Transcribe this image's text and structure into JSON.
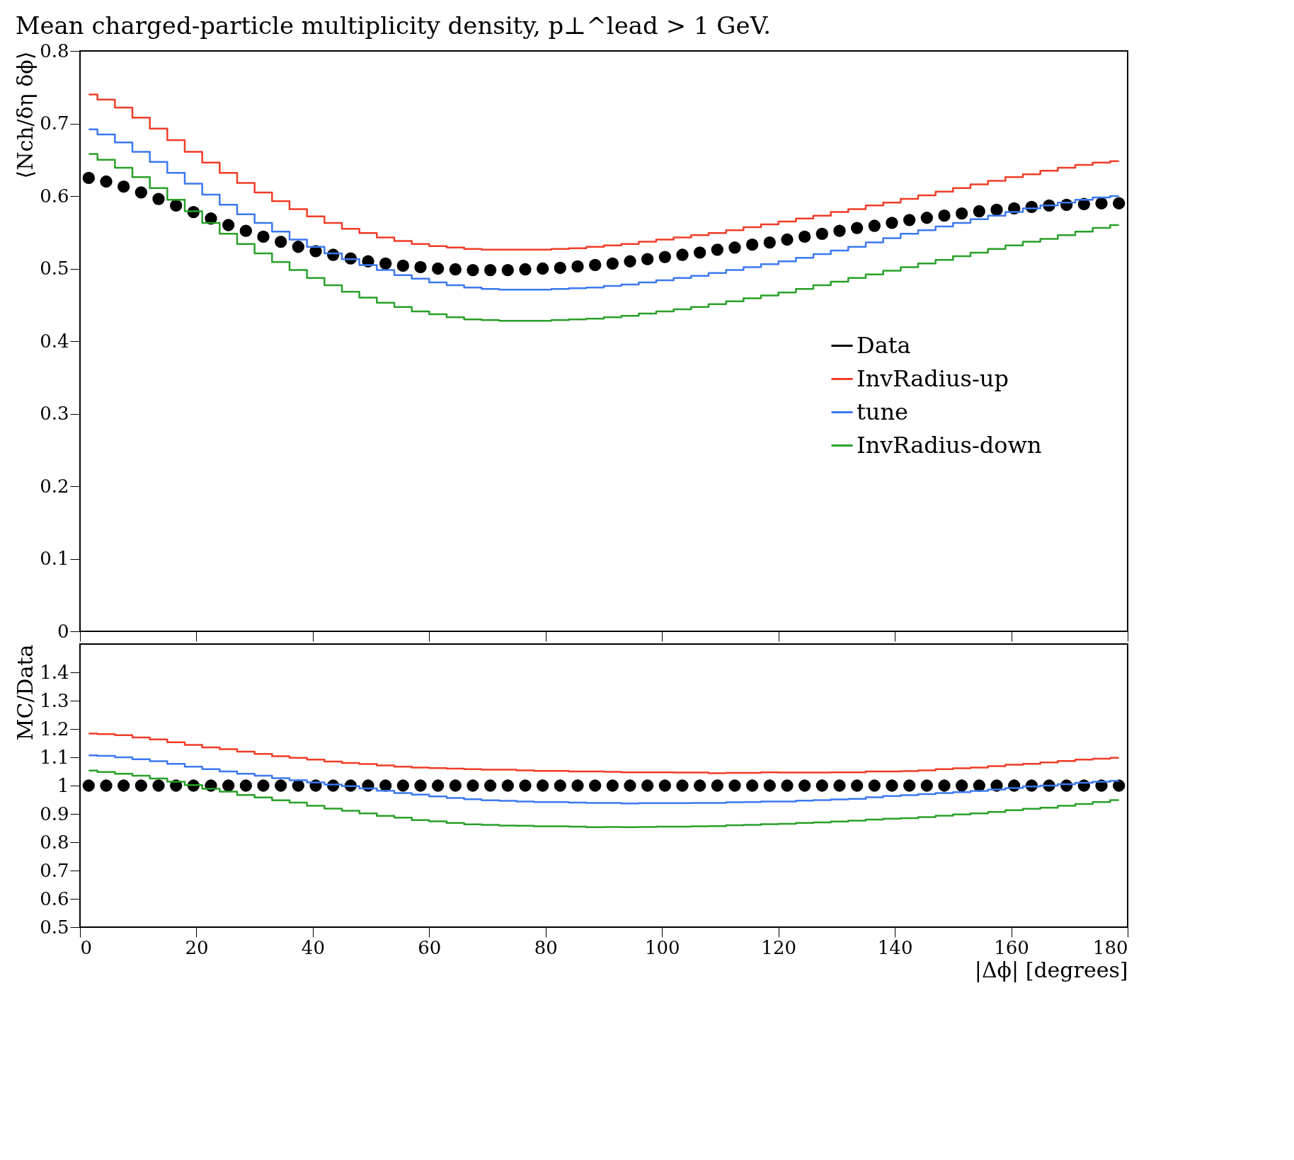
{
  "chart_data": [
    {
      "type": "step",
      "title": "Mean charged-particle multiplicity density, p⊥^lead > 1 GeV.",
      "ylabel": "⟨Nch/δη δϕ⟩",
      "x": [
        1.5,
        4.5,
        7.5,
        10.5,
        13.5,
        16.5,
        19.5,
        22.5,
        25.5,
        28.5,
        31.5,
        34.5,
        37.5,
        40.5,
        43.5,
        46.5,
        49.5,
        52.5,
        55.5,
        58.5,
        61.5,
        64.5,
        67.5,
        70.5,
        73.5,
        76.5,
        79.5,
        82.5,
        85.5,
        88.5,
        91.5,
        94.5,
        97.5,
        100.5,
        103.5,
        106.5,
        109.5,
        112.5,
        115.5,
        118.5,
        121.5,
        124.5,
        127.5,
        130.5,
        133.5,
        136.5,
        139.5,
        142.5,
        145.5,
        148.5,
        151.5,
        154.5,
        157.5,
        160.5,
        163.5,
        166.5,
        169.5,
        172.5,
        175.5,
        178.5
      ],
      "xlim": [
        0,
        180
      ],
      "xticks": [
        0,
        20,
        40,
        60,
        80,
        100,
        120,
        140,
        160,
        180
      ],
      "ylim": [
        0,
        0.8
      ],
      "yticks": [
        0,
        0.1,
        0.2,
        0.3,
        0.4,
        0.5,
        0.6,
        0.7,
        0.8
      ],
      "tick_labels": "y",
      "grid": false,
      "legend": "bottom right",
      "series": [
        {
          "name": "Data",
          "type": "scatter",
          "marker": "circle",
          "color": "#000000",
          "values": [
            0.625,
            0.62,
            0.613,
            0.605,
            0.596,
            0.587,
            0.578,
            0.569,
            0.56,
            0.552,
            0.544,
            0.537,
            0.53,
            0.524,
            0.519,
            0.514,
            0.51,
            0.507,
            0.504,
            0.502,
            0.5,
            0.499,
            0.498,
            0.498,
            0.498,
            0.499,
            0.5,
            0.501,
            0.503,
            0.505,
            0.507,
            0.51,
            0.513,
            0.516,
            0.519,
            0.522,
            0.526,
            0.529,
            0.533,
            0.536,
            0.54,
            0.544,
            0.548,
            0.552,
            0.556,
            0.559,
            0.563,
            0.567,
            0.57,
            0.573,
            0.576,
            0.579,
            0.581,
            0.583,
            0.585,
            0.587,
            0.588,
            0.589,
            0.59,
            0.59
          ]
        },
        {
          "name": "InvRadius-up",
          "color": "#f03c28",
          "values": [
            0.74,
            0.733,
            0.722,
            0.708,
            0.693,
            0.677,
            0.661,
            0.646,
            0.632,
            0.618,
            0.605,
            0.593,
            0.582,
            0.572,
            0.563,
            0.555,
            0.549,
            0.543,
            0.538,
            0.534,
            0.531,
            0.529,
            0.527,
            0.526,
            0.526,
            0.526,
            0.526,
            0.527,
            0.528,
            0.53,
            0.532,
            0.534,
            0.537,
            0.54,
            0.543,
            0.546,
            0.549,
            0.553,
            0.557,
            0.561,
            0.565,
            0.569,
            0.573,
            0.578,
            0.582,
            0.587,
            0.591,
            0.596,
            0.601,
            0.606,
            0.611,
            0.616,
            0.621,
            0.626,
            0.63,
            0.635,
            0.639,
            0.643,
            0.646,
            0.648
          ]
        },
        {
          "name": "tune",
          "color": "#3c78f0",
          "values": [
            0.692,
            0.685,
            0.674,
            0.661,
            0.647,
            0.632,
            0.617,
            0.602,
            0.588,
            0.575,
            0.563,
            0.551,
            0.54,
            0.53,
            0.521,
            0.513,
            0.505,
            0.498,
            0.491,
            0.486,
            0.481,
            0.477,
            0.474,
            0.472,
            0.471,
            0.471,
            0.471,
            0.472,
            0.473,
            0.474,
            0.476,
            0.478,
            0.481,
            0.484,
            0.487,
            0.49,
            0.494,
            0.498,
            0.502,
            0.506,
            0.51,
            0.515,
            0.52,
            0.525,
            0.53,
            0.536,
            0.542,
            0.548,
            0.553,
            0.558,
            0.563,
            0.568,
            0.573,
            0.578,
            0.583,
            0.587,
            0.591,
            0.595,
            0.598,
            0.6
          ]
        },
        {
          "name": "InvRadius-down",
          "color": "#28a028",
          "values": [
            0.658,
            0.65,
            0.639,
            0.626,
            0.611,
            0.595,
            0.579,
            0.563,
            0.548,
            0.534,
            0.521,
            0.509,
            0.498,
            0.487,
            0.477,
            0.468,
            0.46,
            0.453,
            0.447,
            0.441,
            0.437,
            0.433,
            0.43,
            0.429,
            0.428,
            0.428,
            0.428,
            0.429,
            0.43,
            0.431,
            0.433,
            0.435,
            0.438,
            0.441,
            0.444,
            0.447,
            0.451,
            0.455,
            0.459,
            0.463,
            0.467,
            0.472,
            0.477,
            0.482,
            0.487,
            0.492,
            0.497,
            0.502,
            0.507,
            0.512,
            0.517,
            0.522,
            0.527,
            0.532,
            0.537,
            0.541,
            0.546,
            0.551,
            0.556,
            0.56
          ]
        }
      ]
    },
    {
      "type": "step",
      "xlabel": "|Δϕ| [degrees]",
      "ylabel": "MC/Data",
      "x": [
        1.5,
        4.5,
        7.5,
        10.5,
        13.5,
        16.5,
        19.5,
        22.5,
        25.5,
        28.5,
        31.5,
        34.5,
        37.5,
        40.5,
        43.5,
        46.5,
        49.5,
        52.5,
        55.5,
        58.5,
        61.5,
        64.5,
        67.5,
        70.5,
        73.5,
        76.5,
        79.5,
        82.5,
        85.5,
        88.5,
        91.5,
        94.5,
        97.5,
        100.5,
        103.5,
        106.5,
        109.5,
        112.5,
        115.5,
        118.5,
        121.5,
        124.5,
        127.5,
        130.5,
        133.5,
        136.5,
        139.5,
        142.5,
        145.5,
        148.5,
        151.5,
        154.5,
        157.5,
        160.5,
        163.5,
        166.5,
        169.5,
        172.5,
        175.5,
        178.5
      ],
      "xlim": [
        0,
        180
      ],
      "xticks": [
        0,
        20,
        40,
        60,
        80,
        100,
        120,
        140,
        160,
        180
      ],
      "ylim": [
        0.5,
        1.5
      ],
      "yticks": [
        0.5,
        0.6,
        0.7,
        0.8,
        0.9,
        1,
        1.1,
        1.2,
        1.3,
        1.4
      ],
      "grid": false,
      "series": [
        {
          "color": "#f03c28",
          "values": [
            1.184,
            1.182,
            1.178,
            1.17,
            1.163,
            1.153,
            1.144,
            1.135,
            1.129,
            1.12,
            1.112,
            1.104,
            1.098,
            1.092,
            1.085,
            1.08,
            1.076,
            1.071,
            1.067,
            1.064,
            1.062,
            1.06,
            1.058,
            1.056,
            1.056,
            1.054,
            1.052,
            1.052,
            1.05,
            1.05,
            1.049,
            1.047,
            1.047,
            1.047,
            1.046,
            1.046,
            1.044,
            1.045,
            1.045,
            1.047,
            1.046,
            1.046,
            1.046,
            1.047,
            1.047,
            1.05,
            1.05,
            1.051,
            1.054,
            1.058,
            1.061,
            1.064,
            1.069,
            1.074,
            1.077,
            1.082,
            1.087,
            1.092,
            1.095,
            1.098
          ]
        },
        {
          "color": "#3c78f0",
          "values": [
            1.107,
            1.105,
            1.1,
            1.093,
            1.086,
            1.077,
            1.067,
            1.058,
            1.05,
            1.042,
            1.035,
            1.026,
            1.019,
            1.011,
            1.004,
            0.998,
            0.99,
            0.982,
            0.974,
            0.968,
            0.962,
            0.956,
            0.952,
            0.948,
            0.946,
            0.944,
            0.942,
            0.942,
            0.94,
            0.939,
            0.939,
            0.937,
            0.938,
            0.938,
            0.938,
            0.939,
            0.939,
            0.941,
            0.942,
            0.944,
            0.944,
            0.947,
            0.949,
            0.951,
            0.953,
            0.959,
            0.963,
            0.966,
            0.97,
            0.974,
            0.977,
            0.981,
            0.986,
            0.991,
            0.997,
            1.0,
            1.005,
            1.01,
            1.014,
            1.017
          ]
        },
        {
          "color": "#28a028",
          "values": [
            1.053,
            1.048,
            1.042,
            1.035,
            1.025,
            1.014,
            1.002,
            0.989,
            0.979,
            0.967,
            0.958,
            0.948,
            0.94,
            0.929,
            0.919,
            0.911,
            0.902,
            0.893,
            0.887,
            0.878,
            0.874,
            0.868,
            0.863,
            0.861,
            0.859,
            0.858,
            0.856,
            0.856,
            0.855,
            0.853,
            0.854,
            0.853,
            0.854,
            0.855,
            0.855,
            0.856,
            0.857,
            0.86,
            0.861,
            0.864,
            0.865,
            0.868,
            0.87,
            0.873,
            0.876,
            0.88,
            0.883,
            0.885,
            0.889,
            0.894,
            0.898,
            0.902,
            0.907,
            0.913,
            0.918,
            0.922,
            0.929,
            0.935,
            0.942,
            0.949
          ]
        },
        {
          "type": "scatter",
          "marker": "circle",
          "color": "#000000",
          "values": [
            1,
            1,
            1,
            1,
            1,
            1,
            1,
            1,
            1,
            1,
            1,
            1,
            1,
            1,
            1,
            1,
            1,
            1,
            1,
            1,
            1,
            1,
            1,
            1,
            1,
            1,
            1,
            1,
            1,
            1,
            1,
            1,
            1,
            1,
            1,
            1,
            1,
            1,
            1,
            1,
            1,
            1,
            1,
            1,
            1,
            1,
            1,
            1,
            1,
            1,
            1,
            1,
            1,
            1,
            1,
            1,
            1,
            1,
            1,
            1
          ]
        }
      ]
    }
  ]
}
